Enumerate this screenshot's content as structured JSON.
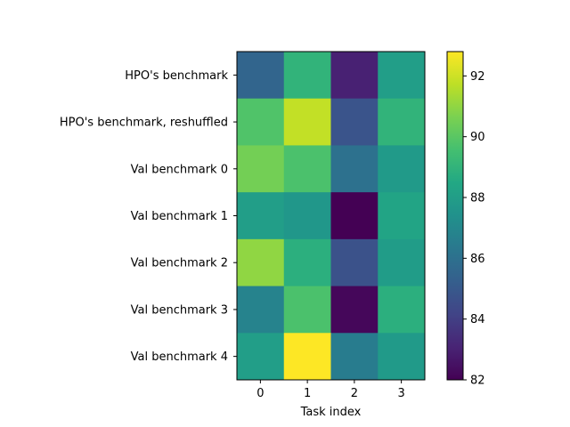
{
  "chart_data": {
    "type": "heatmap",
    "title": "",
    "xlabel": "Task index",
    "ylabel": "",
    "x_categories": [
      "0",
      "1",
      "2",
      "3"
    ],
    "y_categories": [
      "HPO's benchmark",
      "HPO's benchmark, reshuffled",
      "Val benchmark 0",
      "Val benchmark 1",
      "Val benchmark 2",
      "Val benchmark 3",
      "Val benchmark 4"
    ],
    "values": [
      [
        85.5,
        89.0,
        83.0,
        88.0
      ],
      [
        89.8,
        91.8,
        84.8,
        89.0
      ],
      [
        90.5,
        89.7,
        86.0,
        87.8
      ],
      [
        88.0,
        87.7,
        82.0,
        88.3
      ],
      [
        91.0,
        88.8,
        84.7,
        87.9
      ],
      [
        86.8,
        89.7,
        82.2,
        88.8
      ],
      [
        88.0,
        92.8,
        86.5,
        87.8
      ]
    ],
    "colorbar": {
      "colormap": "viridis",
      "vmin": 82.0,
      "vmax": 92.8,
      "ticks": [
        "82",
        "84",
        "86",
        "88",
        "90",
        "92"
      ]
    },
    "grid": false,
    "legend": "none"
  }
}
